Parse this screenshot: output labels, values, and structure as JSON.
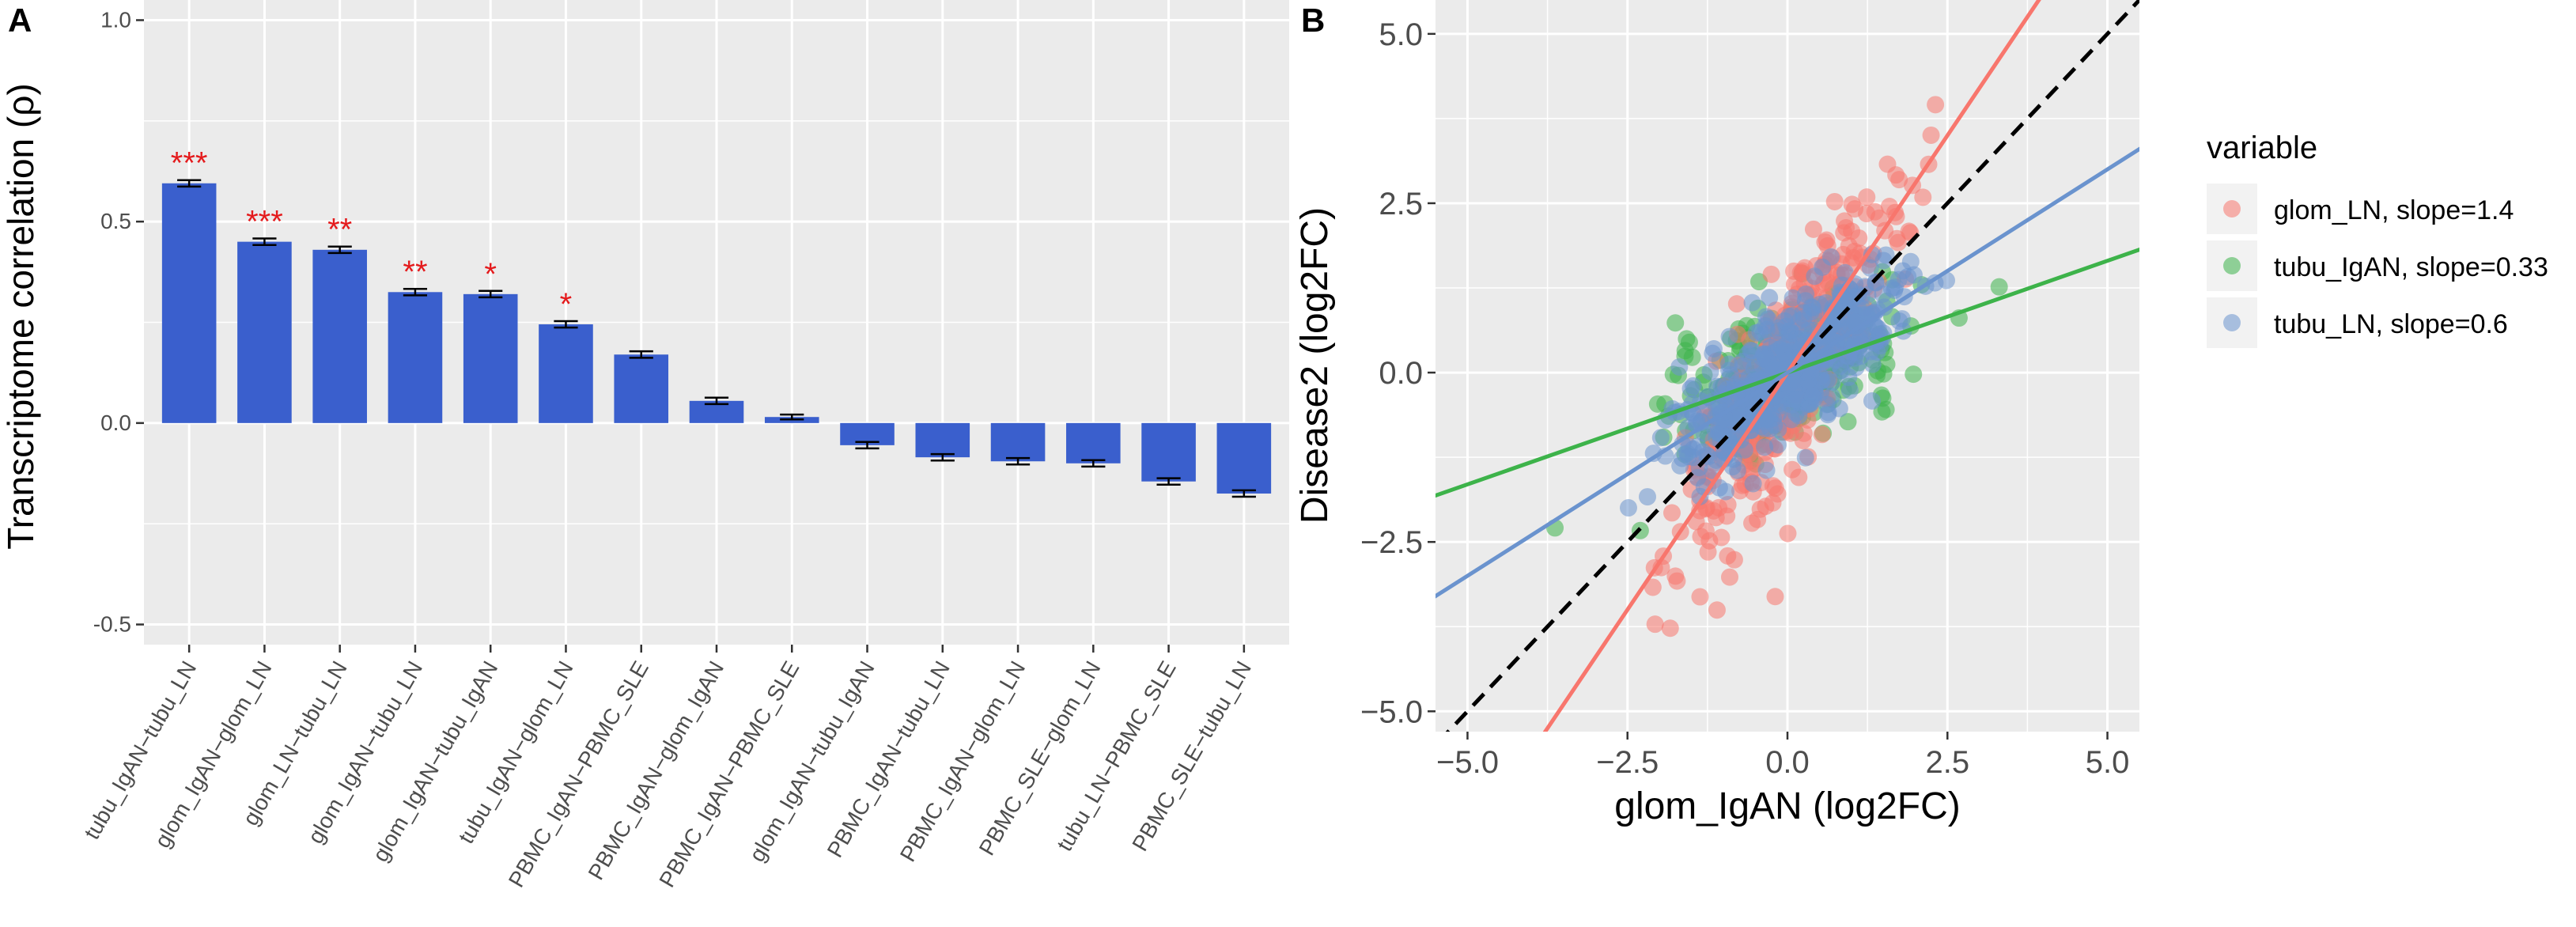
{
  "chart_data": [
    {
      "panel": "A",
      "type": "bar",
      "ylabel": "Transcriptome correlation (ρ)",
      "xlabel": "",
      "ylim": [
        -0.5,
        1.0
      ],
      "yticks": [
        -0.5,
        0.0,
        0.5,
        1.0
      ],
      "ytick_labels": [
        "-0.5",
        "0.0",
        "0.5",
        "1.0"
      ],
      "grid": true,
      "bar_color": "#3A5FCD",
      "sig_color": "#e41a1c",
      "categories": [
        "tubu_IgAN−tubu_LN",
        "glom_IgAN−glom_LN",
        "glom_LN−tubu_LN",
        "glom_IgAN−tubu_LN",
        "glom_IgAN−tubu_IgAN",
        "tubu_IgAN−glom_LN",
        "PBMC_IgAN−PBMC_SLE",
        "PBMC_IgAN−glom_IgAN",
        "PBMC_IgAN−PBMC_SLE",
        "glom_IgAN−tubu_IgAN",
        "PBMC_IgAN−tubu_LN",
        "PBMC_IgAN−glom_LN",
        "PBMC_SLE−glom_LN",
        "tubu_LN−PBMC_SLE",
        "PBMC_SLE−tubu_LN"
      ],
      "values": [
        0.595,
        0.45,
        0.43,
        0.325,
        0.32,
        0.245,
        0.17,
        0.055,
        0.015,
        -0.055,
        -0.085,
        -0.095,
        -0.1,
        -0.145,
        -0.175
      ],
      "errors": [
        0.008,
        0.008,
        0.008,
        0.008,
        0.008,
        0.008,
        0.008,
        0.008,
        0.006,
        0.008,
        0.008,
        0.008,
        0.008,
        0.008,
        0.008
      ],
      "significance": [
        "***",
        "***",
        "**",
        "**",
        "*",
        "*",
        "",
        "",
        "",
        "",
        "",
        "",
        "",
        "",
        ""
      ]
    },
    {
      "panel": "B",
      "type": "scatter",
      "xlabel": "glom_IgAN (log2FC)",
      "ylabel": "Disease2 (log2FC)",
      "xlim": [
        -5.5,
        5.5
      ],
      "ylim": [
        -5.3,
        5.5
      ],
      "xticks": [
        -5.0,
        -2.5,
        0.0,
        2.5,
        5.0
      ],
      "xtick_labels": [
        "−5.0",
        "−2.5",
        "0.0",
        "2.5",
        "5.0"
      ],
      "yticks": [
        -5.0,
        -2.5,
        0.0,
        2.5,
        5.0
      ],
      "ytick_labels": [
        "−5.0",
        "−2.5",
        "0.0",
        "2.5",
        "5.0"
      ],
      "grid": true,
      "legend_title": "variable",
      "legend_position": "right",
      "identity_line": {
        "slope": 1,
        "intercept": 0,
        "style": "dashed",
        "color": "#000000"
      },
      "series": [
        {
          "name": "glom_LN, slope=1.4",
          "slope": 1.4,
          "color": "#F8766D"
        },
        {
          "name": "tubu_IgAN, slope=0.33",
          "slope": 0.33,
          "color": "#3DB34A"
        },
        {
          "name": "tubu_LN, slope=0.6",
          "slope": 0.6,
          "color": "#6A93CE"
        }
      ]
    }
  ],
  "panel_labels": [
    "A",
    "B"
  ]
}
